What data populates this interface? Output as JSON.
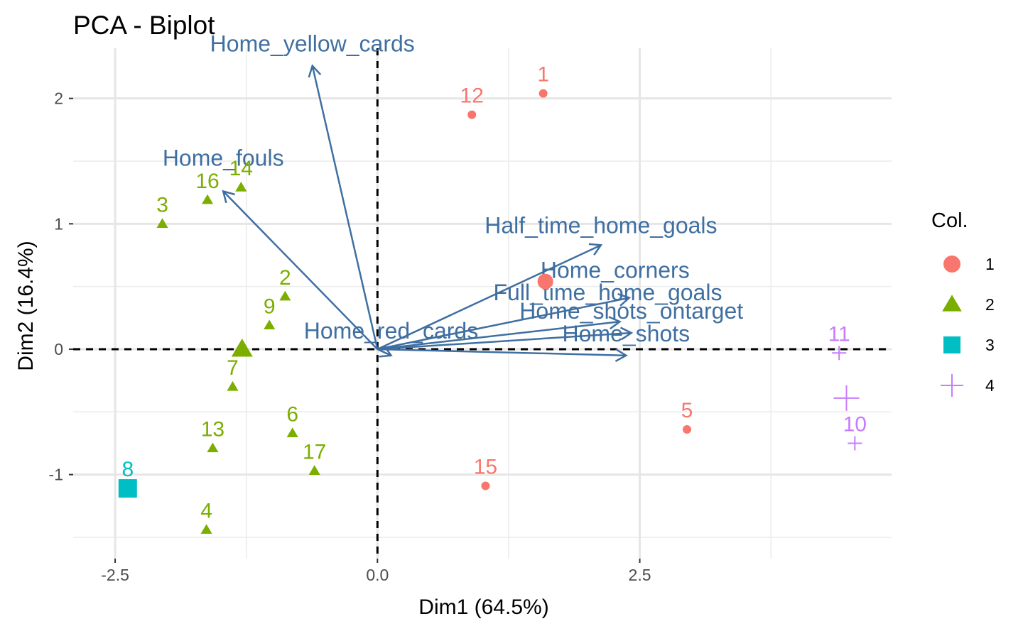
{
  "chart_data": {
    "type": "scatter",
    "title": "PCA - Biplot",
    "xlabel": "Dim1 (64.5%)",
    "ylabel": "Dim2 (16.4%)",
    "xlim": [
      -2.9,
      4.9
    ],
    "ylim": [
      -1.67,
      2.4
    ],
    "x_ticks": [
      {
        "value": -2.5,
        "label": "-2.5"
      },
      {
        "value": 0,
        "label": "0.0"
      },
      {
        "value": 2.5,
        "label": "2.5"
      }
    ],
    "y_ticks": [
      {
        "value": -1,
        "label": "-1"
      },
      {
        "value": 0,
        "label": "0"
      },
      {
        "value": 1,
        "label": "1"
      },
      {
        "value": 2,
        "label": "2"
      }
    ],
    "grid": true,
    "legend": {
      "title": "Col.",
      "placement": "right",
      "entries": [
        {
          "label": "1",
          "shape": "circle",
          "color": "#F8766D"
        },
        {
          "label": "2",
          "shape": "triangle",
          "color": "#7CAE00"
        },
        {
          "label": "3",
          "shape": "square",
          "color": "#00BFC4"
        },
        {
          "label": "4",
          "shape": "plus",
          "color": "#C77CFF"
        }
      ]
    },
    "points": [
      {
        "label": "1",
        "x": 1.58,
        "y": 2.04,
        "group": "1"
      },
      {
        "label": "12",
        "x": 0.9,
        "y": 1.87,
        "group": "1"
      },
      {
        "label": "5",
        "x": 2.95,
        "y": -0.64,
        "group": "1"
      },
      {
        "label": "15",
        "x": 1.03,
        "y": -1.09,
        "group": "1"
      },
      {
        "label": "14",
        "x": -1.3,
        "y": 1.29,
        "group": "2"
      },
      {
        "label": "16",
        "x": -1.62,
        "y": 1.19,
        "group": "2"
      },
      {
        "label": "3",
        "x": -2.05,
        "y": 1.0,
        "group": "2"
      },
      {
        "label": "2",
        "x": -0.88,
        "y": 0.42,
        "group": "2"
      },
      {
        "label": "9",
        "x": -1.03,
        "y": 0.19,
        "group": "2"
      },
      {
        "label": "7",
        "x": -1.38,
        "y": -0.3,
        "group": "2"
      },
      {
        "label": "13",
        "x": -1.57,
        "y": -0.79,
        "group": "2"
      },
      {
        "label": "6",
        "x": -0.81,
        "y": -0.67,
        "group": "2"
      },
      {
        "label": "17",
        "x": -0.6,
        "y": -0.97,
        "group": "2"
      },
      {
        "label": "4",
        "x": -1.63,
        "y": -1.44,
        "group": "2"
      },
      {
        "label": "8",
        "x": -2.38,
        "y": -1.11,
        "group": "3"
      },
      {
        "label": "11",
        "x": 4.4,
        "y": -0.03,
        "group": "4"
      },
      {
        "label": "10",
        "x": 4.55,
        "y": -0.75,
        "group": "4"
      }
    ],
    "centroids": [
      {
        "group": "1",
        "x": 1.6,
        "y": 0.54
      },
      {
        "group": "2",
        "x": -1.29,
        "y": 0.0
      },
      {
        "group": "3",
        "x": -2.38,
        "y": -1.11
      },
      {
        "group": "4",
        "x": 4.47,
        "y": -0.39
      }
    ],
    "variables": [
      {
        "name": "Home_yellow_cards",
        "x": -0.62,
        "y": 2.26
      },
      {
        "name": "Home_fouls",
        "x": -1.47,
        "y": 1.26
      },
      {
        "name": "Half_time_home_goals",
        "x": 2.13,
        "y": 0.83
      },
      {
        "name": "Home_corners",
        "x": 2.4,
        "y": 0.41
      },
      {
        "name": "Full_time_home_goals",
        "x": 2.31,
        "y": 0.22
      },
      {
        "name": "Home_shots_ontarget",
        "x": 2.42,
        "y": 0.13
      },
      {
        "name": "Home_shots",
        "x": 2.37,
        "y": -0.05
      },
      {
        "name": "Home_red_cards",
        "x": 0.13,
        "y": -0.05
      }
    ]
  }
}
